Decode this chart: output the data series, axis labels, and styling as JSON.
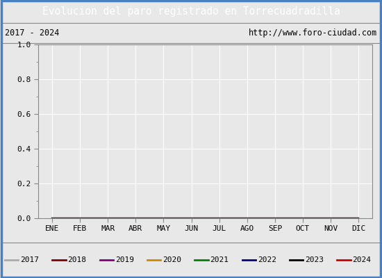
{
  "title": "Evolucion del paro registrado en Torrecuadradilla",
  "title_bg": "#4a7fc1",
  "title_color": "white",
  "subtitle_left": "2017 - 2024",
  "subtitle_right": "http://www.foro-ciudad.com",
  "fig_bg": "#e8e8e8",
  "plot_bg": "#e8e8e8",
  "grid_color": "#ffffff",
  "xlabel_ticks": [
    "ENE",
    "FEB",
    "MAR",
    "ABR",
    "MAY",
    "JUN",
    "JUL",
    "AGO",
    "SEP",
    "OCT",
    "NOV",
    "DIC"
  ],
  "ylim": [
    0.0,
    1.0
  ],
  "yticks": [
    0.0,
    0.2,
    0.4,
    0.6,
    0.8,
    1.0
  ],
  "legend_entries": [
    {
      "label": "2017",
      "color": "#aaaaaa"
    },
    {
      "label": "2018",
      "color": "#800000"
    },
    {
      "label": "2019",
      "color": "#800080"
    },
    {
      "label": "2020",
      "color": "#cc8800"
    },
    {
      "label": "2021",
      "color": "#008000"
    },
    {
      "label": "2022",
      "color": "#000080"
    },
    {
      "label": "2023",
      "color": "#000000"
    },
    {
      "label": "2024",
      "color": "#cc0000"
    }
  ],
  "border_color": "#4a7fc1",
  "tick_label_fontsize": 8,
  "title_fontsize": 10.5
}
